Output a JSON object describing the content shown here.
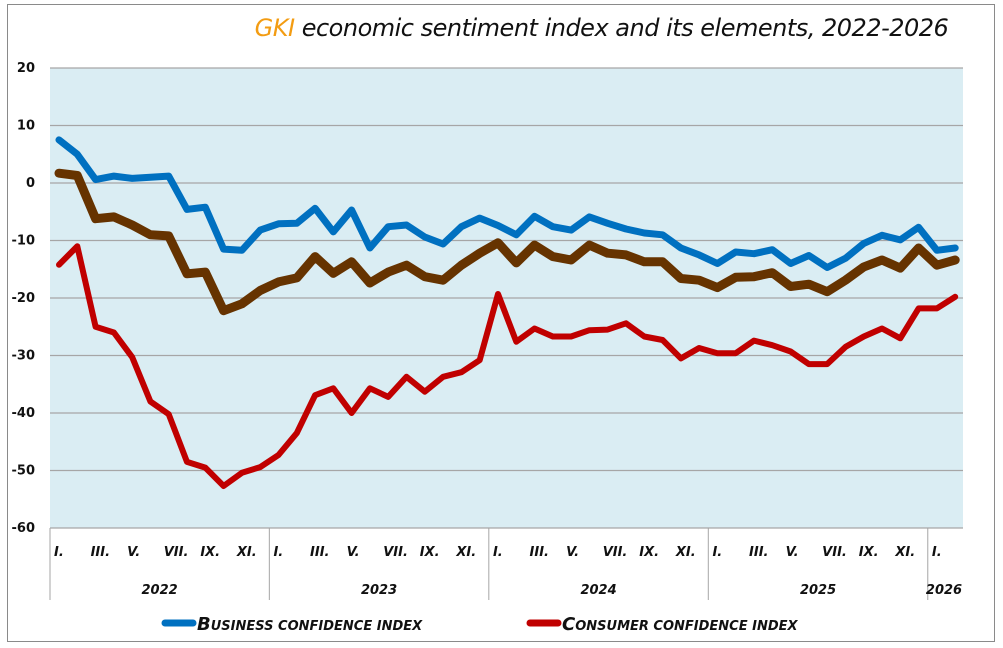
{
  "title": {
    "brand": "GKI",
    "rest": " economic sentiment index and its elements, 2022-2026"
  },
  "chart_data": {
    "type": "line",
    "title": "GKI economic sentiment index and its elements, 2022-2026",
    "xlabel": "",
    "ylabel": "",
    "ylim": [
      -60,
      20
    ],
    "yticks": [
      20,
      10,
      0,
      -10,
      -20,
      -30,
      -40,
      -50,
      -60
    ],
    "grid": true,
    "legend_position": "bottom",
    "month_labels": [
      "I.",
      "III.",
      "V.",
      "VII.",
      "IX.",
      "XI."
    ],
    "years": [
      {
        "label": "2022",
        "months": 12
      },
      {
        "label": "2023",
        "months": 12
      },
      {
        "label": "2024",
        "months": 12
      },
      {
        "label": "2025",
        "months": 12
      },
      {
        "label": "2026",
        "months": 2
      }
    ],
    "x": [
      "2022-01",
      "2022-02",
      "2022-03",
      "2022-04",
      "2022-05",
      "2022-06",
      "2022-07",
      "2022-08",
      "2022-09",
      "2022-10",
      "2022-11",
      "2022-12",
      "2023-01",
      "2023-02",
      "2023-03",
      "2023-04",
      "2023-05",
      "2023-06",
      "2023-07",
      "2023-08",
      "2023-09",
      "2023-10",
      "2023-11",
      "2023-12",
      "2024-01",
      "2024-02",
      "2024-03",
      "2024-04",
      "2024-05",
      "2024-06",
      "2024-07",
      "2024-08",
      "2024-09",
      "2024-10",
      "2024-11",
      "2024-12",
      "2025-01",
      "2025-02",
      "2025-03",
      "2025-04",
      "2025-05",
      "2025-06",
      "2025-07",
      "2025-08",
      "2025-09",
      "2025-10",
      "2025-11",
      "2025-12",
      "2026-01",
      "2026-02"
    ],
    "series": [
      {
        "name": "Business confidence index",
        "color": "#0070c0",
        "in_legend": true,
        "values": [
          7.5,
          5.0,
          0.6,
          1.2,
          0.8,
          1.0,
          1.2,
          -4.6,
          -4.2,
          -11.5,
          -11.7,
          -8.2,
          -7.1,
          -7.0,
          -4.4,
          -8.5,
          -4.7,
          -11.3,
          -7.6,
          -7.3,
          -9.4,
          -10.6,
          -7.6,
          -6.1,
          -7.4,
          -9.0,
          -5.8,
          -7.6,
          -8.2,
          -5.9,
          -7.0,
          -8.0,
          -8.7,
          -9.0,
          -11.3,
          -12.5,
          -14.0,
          -12.0,
          -12.3,
          -11.6,
          -14.0,
          -12.6,
          -14.7,
          -13.1,
          -10.5,
          -9.1,
          -9.9,
          -7.7,
          -11.7,
          -11.3
        ]
      },
      {
        "name": "GKI economic sentiment index",
        "color": "#663300",
        "in_legend": false,
        "values": [
          1.7,
          1.3,
          -6.2,
          -5.9,
          -7.3,
          -9.0,
          -9.2,
          -15.8,
          -15.5,
          -22.2,
          -21.0,
          -18.7,
          -17.2,
          -16.5,
          -12.8,
          -15.7,
          -13.7,
          -17.4,
          -15.5,
          -14.3,
          -16.3,
          -16.9,
          -14.3,
          -12.2,
          -10.4,
          -13.9,
          -10.8,
          -12.8,
          -13.4,
          -10.8,
          -12.2,
          -12.5,
          -13.7,
          -13.7,
          -16.6,
          -16.9,
          -18.2,
          -16.4,
          -16.3,
          -15.6,
          -18.0,
          -17.6,
          -18.9,
          -16.9,
          -14.6,
          -13.4,
          -14.8,
          -11.3,
          -14.3,
          -13.4
        ]
      },
      {
        "name": "Consumer confidence index",
        "color": "#c00000",
        "in_legend": true,
        "values": [
          -14.2,
          -11.0,
          -25.0,
          -26.0,
          -30.3,
          -38.0,
          -40.2,
          -48.5,
          -49.5,
          -52.7,
          -50.4,
          -49.4,
          -47.3,
          -43.5,
          -36.9,
          -35.7,
          -40.0,
          -35.7,
          -37.2,
          -33.7,
          -36.3,
          -33.7,
          -32.9,
          -30.8,
          -19.3,
          -27.6,
          -25.3,
          -26.7,
          -26.7,
          -25.6,
          -25.5,
          -24.4,
          -26.7,
          -27.3,
          -30.5,
          -28.7,
          -29.6,
          -29.6,
          -27.4,
          -28.2,
          -29.3,
          -31.5,
          -31.5,
          -28.5,
          -26.7,
          -25.3,
          -27.0,
          -21.8,
          -21.8,
          -19.8
        ]
      }
    ],
    "legend": [
      {
        "label": "Business confidence index",
        "display": "BUSINESS CONFIDENCE INDEX",
        "first": "B",
        "rest": "USINESS CONFIDENCE INDEX",
        "color": "#0070c0"
      },
      {
        "label": "Consumer confidence index",
        "display": "CONSUMER CONFIDENCE INDEX",
        "first": "C",
        "rest": "ONSUMER CONFIDENCE INDEX",
        "color": "#c00000"
      }
    ],
    "plot_bg": "#daedf3",
    "grid_color": "#a6a6a6"
  }
}
